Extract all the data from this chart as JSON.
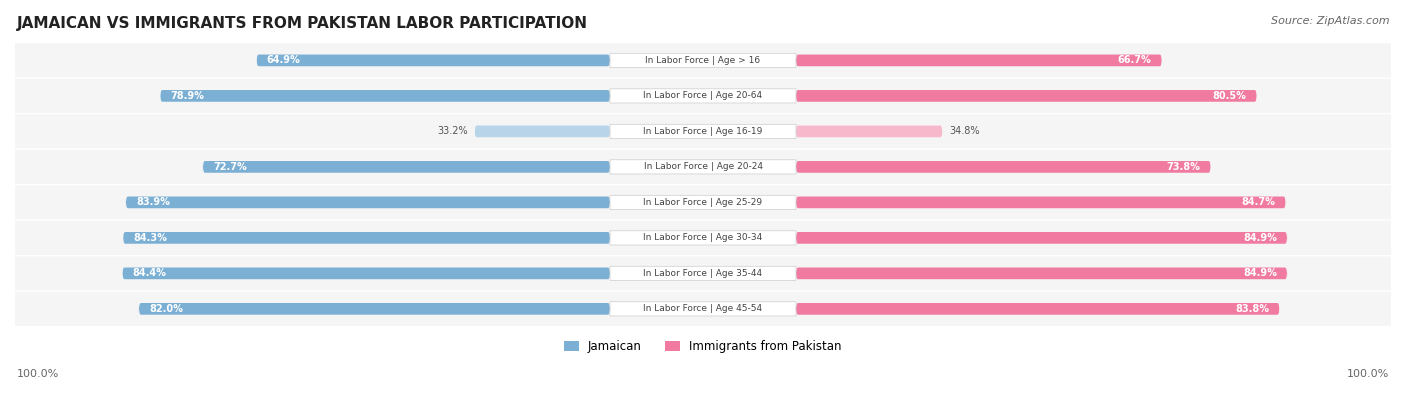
{
  "title": "JAMAICAN VS IMMIGRANTS FROM PAKISTAN LABOR PARTICIPATION",
  "source": "Source: ZipAtlas.com",
  "categories": [
    "In Labor Force | Age > 16",
    "In Labor Force | Age 20-64",
    "In Labor Force | Age 16-19",
    "In Labor Force | Age 20-24",
    "In Labor Force | Age 25-29",
    "In Labor Force | Age 30-34",
    "In Labor Force | Age 35-44",
    "In Labor Force | Age 45-54"
  ],
  "jamaican": [
    64.9,
    78.9,
    33.2,
    72.7,
    83.9,
    84.3,
    84.4,
    82.0
  ],
  "pakistan": [
    66.7,
    80.5,
    34.8,
    73.8,
    84.7,
    84.9,
    84.9,
    83.8
  ],
  "jamaican_color": "#7bafd4",
  "jamaican_color_light": "#b8d4e8",
  "pakistan_color": "#f07aa0",
  "pakistan_color_light": "#f7b8cc",
  "bar_bg": "#f0f0f0",
  "max_val": 100.0,
  "legend_jamaican": "Jamaican",
  "legend_pakistan": "Immigrants from Pakistan",
  "bg_color": "#ffffff",
  "row_bg": "#f5f5f5"
}
